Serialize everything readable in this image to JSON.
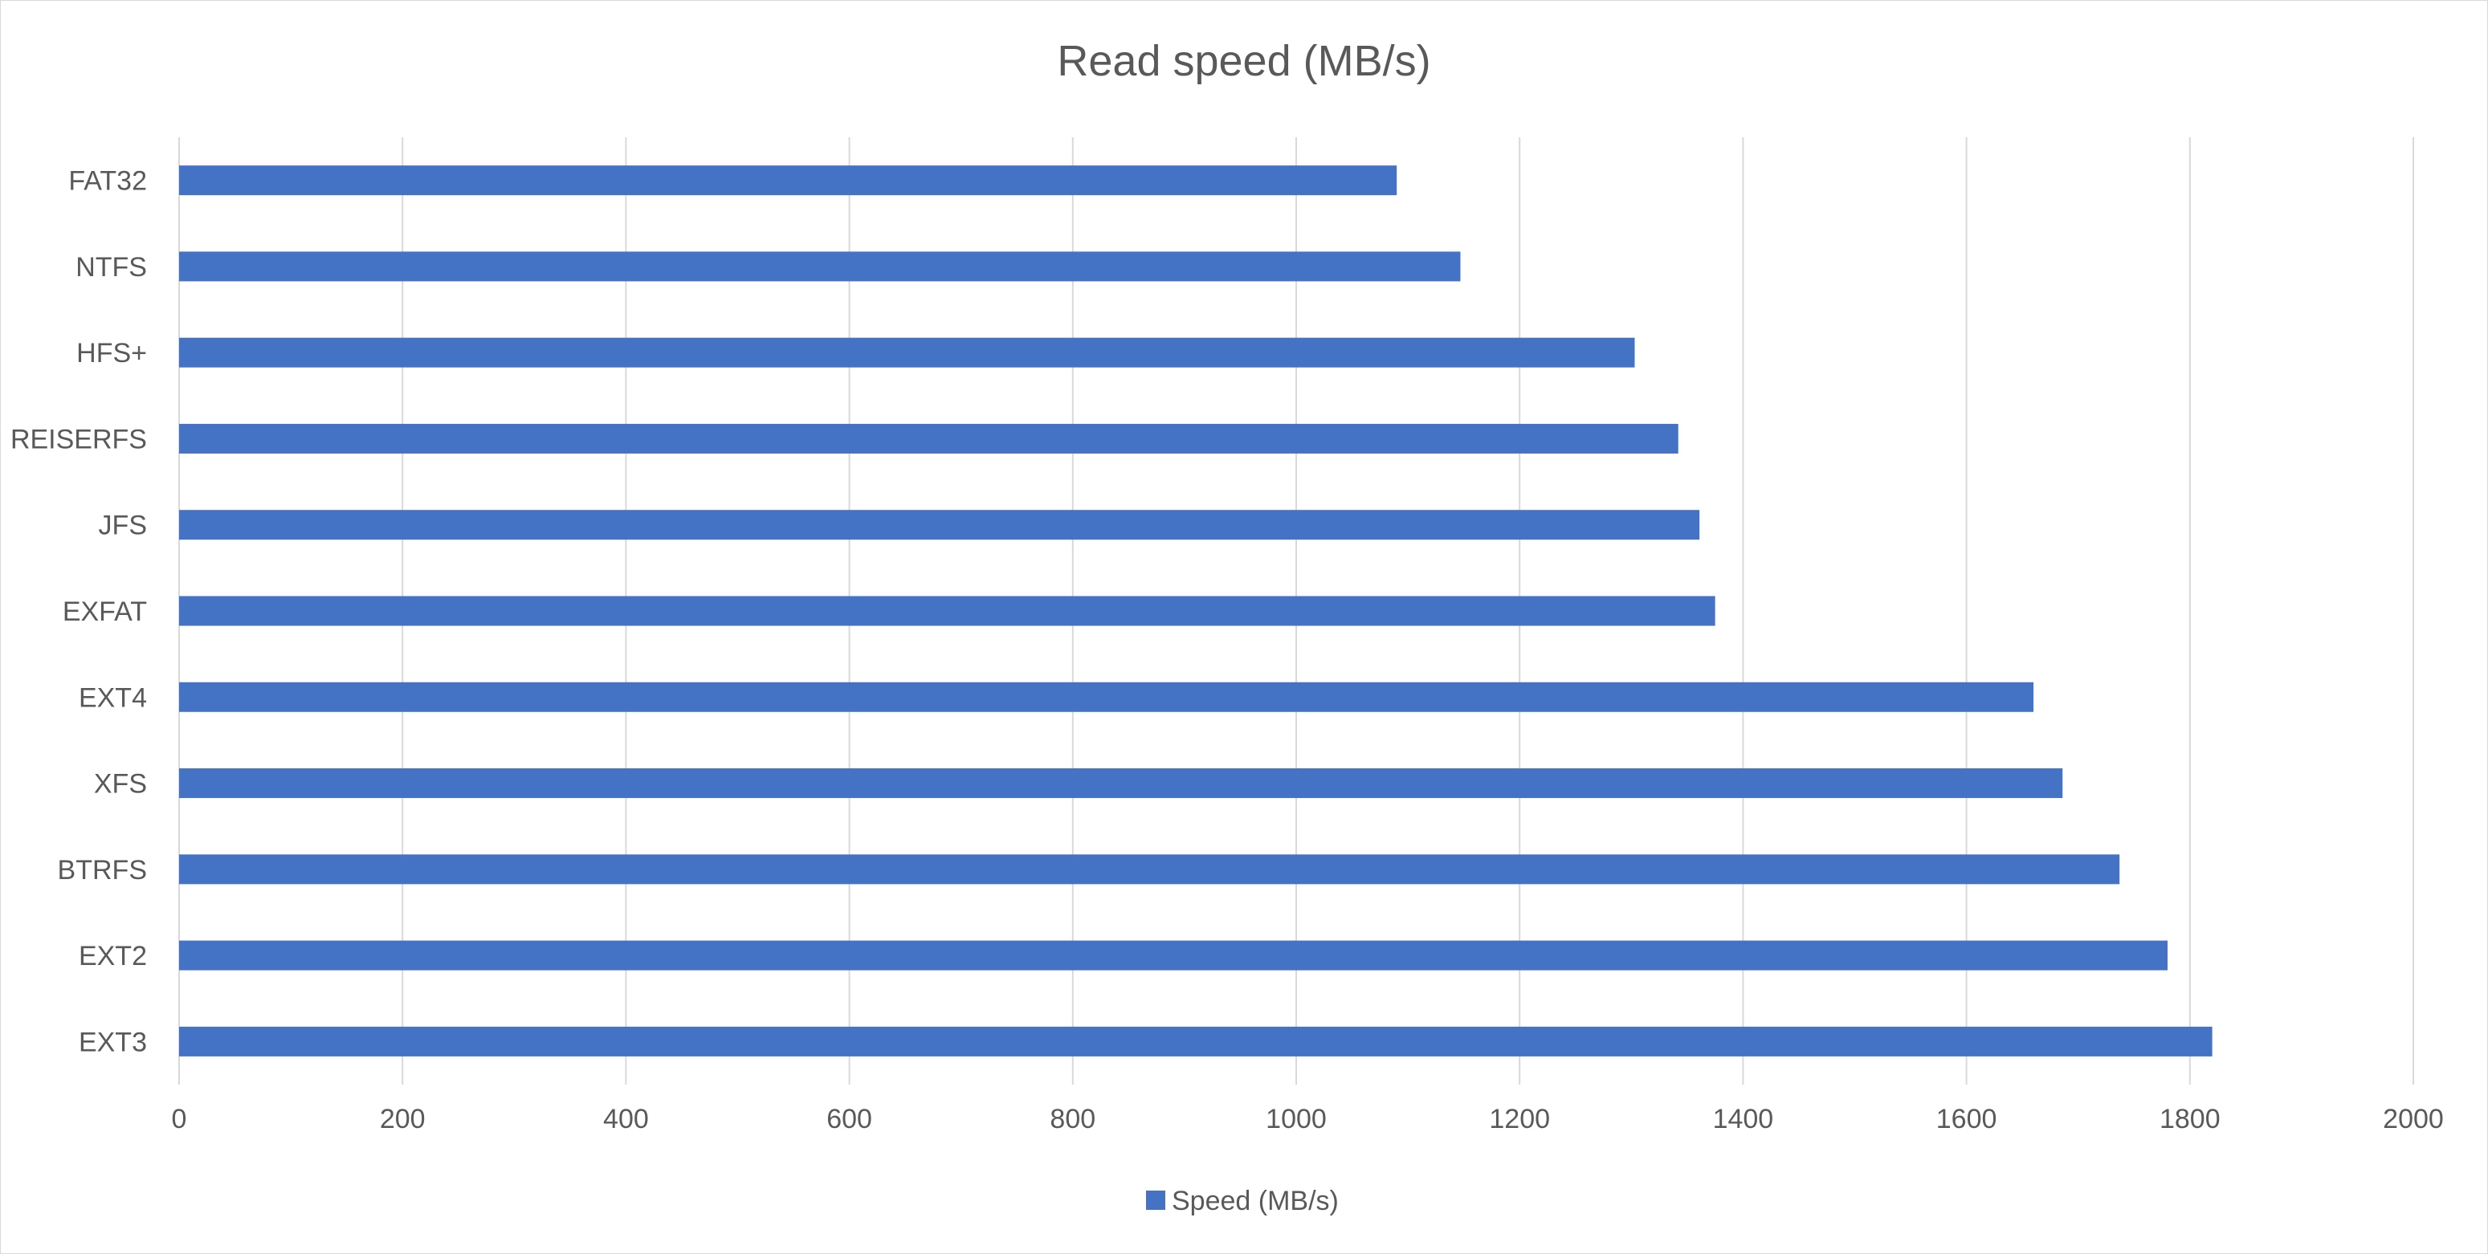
{
  "chart_data": {
    "type": "bar",
    "orientation": "horizontal",
    "title": "Read speed (MB/s)",
    "xlabel": "",
    "ylabel": "",
    "categories": [
      "FAT32",
      "NTFS",
      "HFS+",
      "REISERFS",
      "JFS",
      "EXFAT",
      "EXT4",
      "XFS",
      "BTRFS",
      "EXT2",
      "EXT3"
    ],
    "series": [
      {
        "name": "Speed (MB/s)",
        "color": "#4472C4",
        "values": [
          1090,
          1147,
          1303,
          1342,
          1361,
          1375,
          1660,
          1686,
          1737,
          1780,
          1820
        ]
      }
    ],
    "xlim": [
      0,
      2000
    ],
    "xticks": [
      "0",
      "200",
      "400",
      "600",
      "800",
      "1000",
      "1200",
      "1400",
      "1600",
      "1800",
      "2000"
    ],
    "grid": "vertical",
    "gridline_color": "#d9d9d9",
    "legend_position": "bottom"
  }
}
